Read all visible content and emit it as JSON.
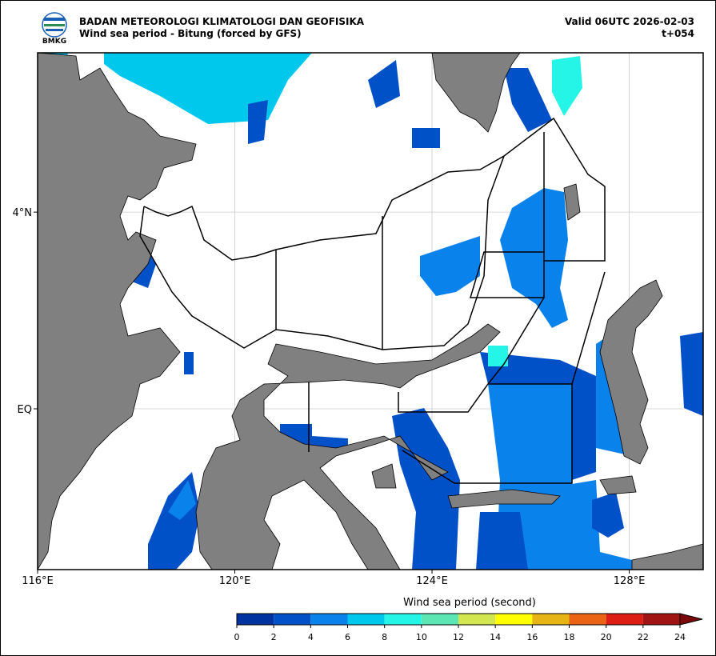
{
  "header": {
    "logo_text": "BMKG",
    "title": "BADAN METEOROLOGI KLIMATOLOGI DAN GEOFISIKA",
    "subtitle": "Wind sea period - Bitung (forced by GFS)",
    "valid": "Valid 06UTC 2026-02-03",
    "lead": "t+054"
  },
  "map": {
    "xlim": [
      116,
      129.5
    ],
    "ylim": [
      -3.27,
      7.24
    ],
    "xticks": [
      {
        "value": 116,
        "label": "116°E"
      },
      {
        "value": 120,
        "label": "120°E"
      },
      {
        "value": 124,
        "label": "124°E"
      },
      {
        "value": 128,
        "label": "128°E"
      }
    ],
    "yticks": [
      {
        "value": 4,
        "label": "4°N"
      },
      {
        "value": 0,
        "label": "EQ"
      }
    ],
    "grid": true
  },
  "colorbar": {
    "label": "Wind sea period (second)",
    "ticks": [
      0,
      2,
      4,
      6,
      8,
      10,
      12,
      14,
      16,
      18,
      20,
      22,
      24
    ],
    "colors": [
      "#0033a0",
      "#0050c8",
      "#0a82eb",
      "#00c8ec",
      "#25f5e6",
      "#5ce6b4",
      "#d2e650",
      "#ffff00",
      "#e6b414",
      "#eb6414",
      "#dc1e14",
      "#a01414"
    ],
    "extend_color": "#7a0a0a"
  }
}
